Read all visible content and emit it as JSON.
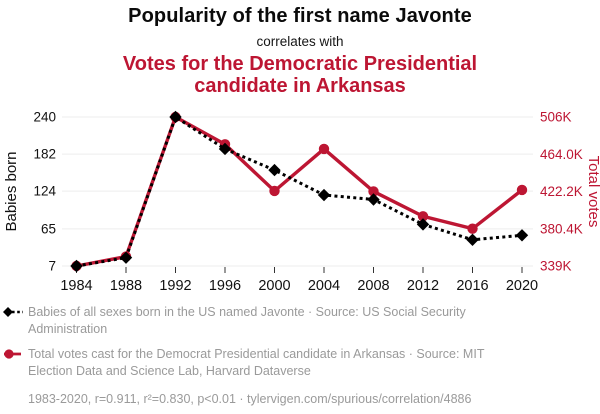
{
  "header": {
    "title": "Popularity of the first name Javonte",
    "subtitle": "correlates with",
    "title2": "Votes for the Democratic Presidential candidate in Arkansas"
  },
  "colors": {
    "accent_red": "#bd1633",
    "series_black": "#000000",
    "legend_gray": "#9a9a9a",
    "gridline": "#ededed",
    "tick": "#333333"
  },
  "chart_data": {
    "type": "line",
    "x": [
      "1984",
      "1988",
      "1992",
      "1996",
      "2000",
      "2004",
      "2008",
      "2012",
      "2016",
      "2020"
    ],
    "series": [
      {
        "name": "Babies of all sexes born in the US named Javonte",
        "axis": "left",
        "color": "#000000",
        "style": "dashed",
        "marker": "diamond",
        "values": [
          7,
          20,
          240,
          190,
          157,
          118,
          111,
          72,
          48,
          55
        ]
      },
      {
        "name": "Total votes cast for the Democrat Presidential candidate in Arkansas",
        "axis": "right",
        "color": "#bd1633",
        "style": "solid",
        "marker": "circle",
        "values": [
          338600,
          349200,
          505800,
          475200,
          422800,
          470000,
          422300,
          394400,
          380500,
          423900
        ]
      }
    ],
    "left_axis": {
      "label": "Babies born",
      "min": 7,
      "max": 240,
      "ticks": [
        7,
        65,
        124,
        182,
        240
      ],
      "tick_labels": [
        "7",
        "65",
        "124",
        "182",
        "240"
      ]
    },
    "right_axis": {
      "label": "Total votes",
      "min": 338600,
      "max": 505800,
      "ticks": [
        338600,
        380400,
        422200,
        464000,
        505800
      ],
      "tick_labels": [
        "339K",
        "380.4K",
        "422.2K",
        "464.0K",
        "506K"
      ]
    },
    "grid": true,
    "legend_position": "bottom"
  },
  "legend": {
    "entries": [
      {
        "icon": "diamond-dashed",
        "text": "Babies of all sexes born in the US named Javonte · Source: US Social Security Administration"
      },
      {
        "icon": "circle-solid",
        "text": "Total votes cast for the Democrat Presidential candidate in Arkansas · Source: MIT Election Data and Science Lab, Harvard Dataverse"
      }
    ],
    "footer": "1983-2020, r=0.911, r²=0.830, p<0.01 · tylervigen.com/spurious/correlation/4886"
  }
}
